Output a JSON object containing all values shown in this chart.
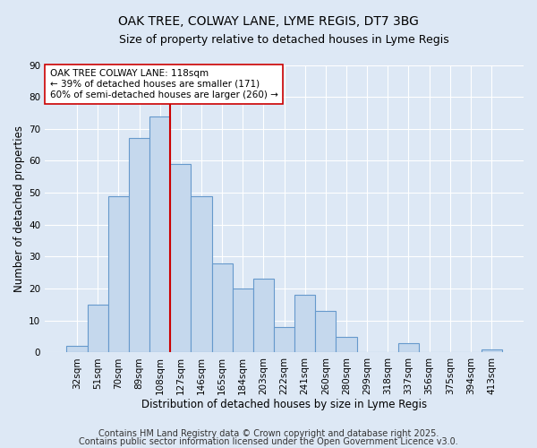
{
  "title": "OAK TREE, COLWAY LANE, LYME REGIS, DT7 3BG",
  "subtitle": "Size of property relative to detached houses in Lyme Regis",
  "xlabel": "Distribution of detached houses by size in Lyme Regis",
  "ylabel": "Number of detached properties",
  "categories": [
    "32sqm",
    "51sqm",
    "70sqm",
    "89sqm",
    "108sqm",
    "127sqm",
    "146sqm",
    "165sqm",
    "184sqm",
    "203sqm",
    "222sqm",
    "241sqm",
    "260sqm",
    "280sqm",
    "299sqm",
    "318sqm",
    "337sqm",
    "356sqm",
    "375sqm",
    "394sqm",
    "413sqm"
  ],
  "values": [
    2,
    15,
    49,
    67,
    74,
    59,
    49,
    28,
    20,
    23,
    8,
    18,
    13,
    5,
    0,
    0,
    3,
    0,
    0,
    0,
    1
  ],
  "bar_color": "#c5d8ed",
  "bar_edge_color": "#6699cc",
  "vline_x": 4.5,
  "vline_color": "#cc0000",
  "annotation_text": "OAK TREE COLWAY LANE: 118sqm\n← 39% of detached houses are smaller (171)\n60% of semi-detached houses are larger (260) →",
  "annotation_box_color": "#ffffff",
  "annotation_box_edge": "#cc0000",
  "ylim": [
    0,
    90
  ],
  "yticks": [
    0,
    10,
    20,
    30,
    40,
    50,
    60,
    70,
    80,
    90
  ],
  "footer1": "Contains HM Land Registry data © Crown copyright and database right 2025.",
  "footer2": "Contains public sector information licensed under the Open Government Licence v3.0.",
  "bg_color": "#dde8f5",
  "fig_bg_color": "#dde8f5",
  "title_fontsize": 10,
  "subtitle_fontsize": 9,
  "label_fontsize": 8.5,
  "tick_fontsize": 7.5,
  "footer_fontsize": 7
}
